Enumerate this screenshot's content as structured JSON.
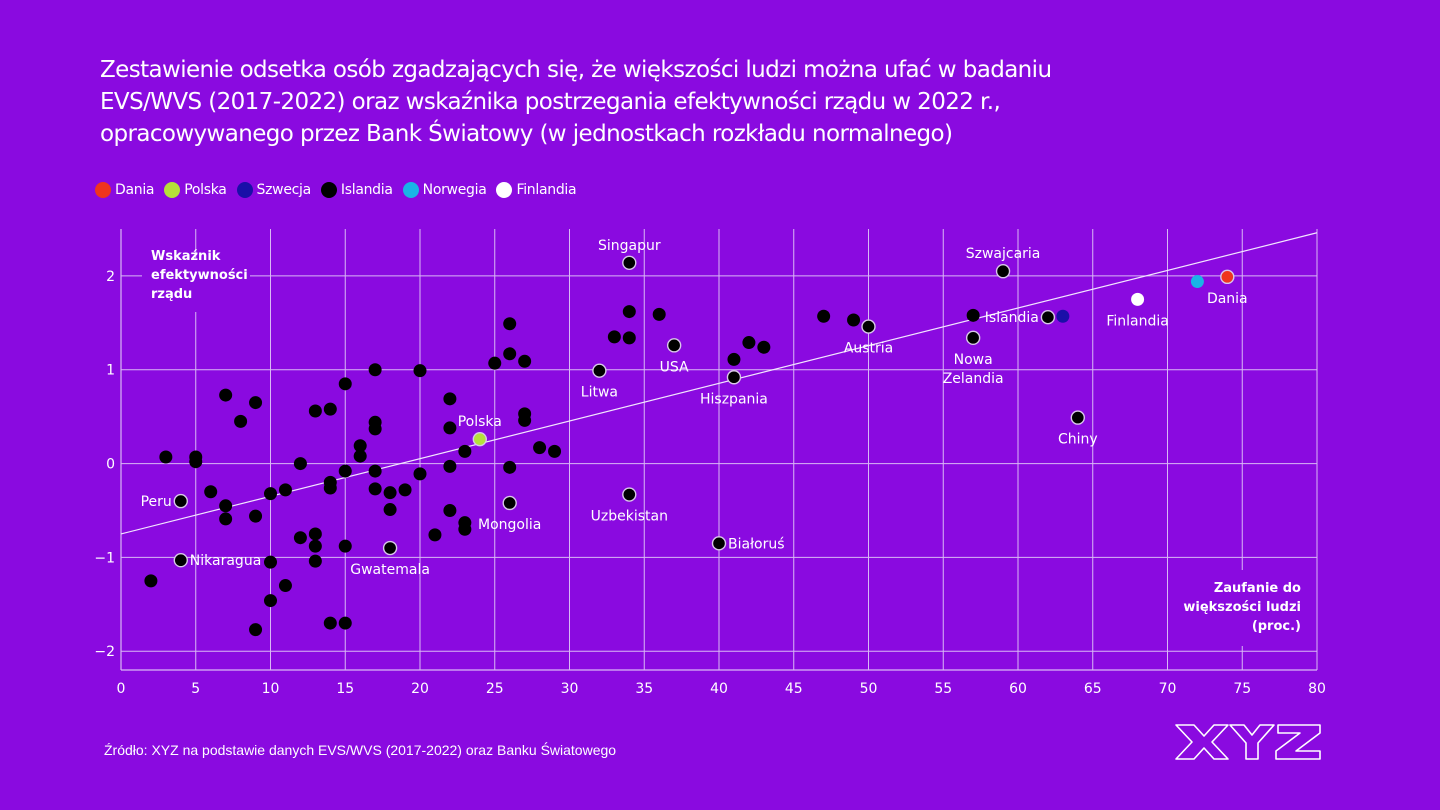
{
  "title_lines": [
    "Zestawienie odsetka osób zgadzających się, że większości ludzi można ufać w badaniu",
    "EVS/WVS (2017-2022) oraz wskaźnika postrzegania efektywności rządu w 2022 r.,",
    "opracowywanego przez Bank Światowy (w jednostkach rozkładu normalnego)"
  ],
  "legend": [
    {
      "label": "Dania",
      "color": "#f0341f"
    },
    {
      "label": "Polska",
      "color": "#b5e03a"
    },
    {
      "label": "Szwecja",
      "color": "#1a0fa8"
    },
    {
      "label": "Islandia",
      "color": "#000000"
    },
    {
      "label": "Norwegia",
      "color": "#1ab4e6"
    },
    {
      "label": "Finlandia",
      "color": "#ffffff"
    }
  ],
  "source": "Źródło: XYZ na podstawie danych EVS/WVS (2017-2022) oraz Banku Światowego",
  "logo_text": "XYZ",
  "colors": {
    "background": "#8a0ae0",
    "grid": "#d9b8f5",
    "default_point": "#000000"
  },
  "chart_data": {
    "type": "scatter",
    "title": "Zestawienie odsetka osób zgadzających się, że większości ludzi można ufać w badaniu EVS/WVS (2017-2022) oraz wskaźnika postrzegania efektywności rządu w 2022 r., opracowywanego przez Bank Światowy (w jednostkach rozkładu normalnego)",
    "xlabel_lines": [
      "Zaufanie do",
      "większości ludzi",
      "(proc.)"
    ],
    "ylabel_lines": [
      "Wskaźnik",
      "efektywności",
      "rządu"
    ],
    "xlim": [
      0,
      80
    ],
    "ylim": [
      -2.2,
      2.5
    ],
    "xticks": [
      0,
      5,
      10,
      15,
      20,
      25,
      30,
      35,
      40,
      45,
      50,
      55,
      60,
      65,
      70,
      75,
      80
    ],
    "yticks": [
      -2,
      -1,
      0,
      1,
      2
    ],
    "ytick_labels": [
      "−2",
      "−1",
      "0",
      "1",
      "2"
    ],
    "grid": true,
    "legend_position": "top-left",
    "trendline": {
      "x": [
        0,
        80
      ],
      "y": [
        -0.75,
        2.46
      ]
    },
    "points": [
      {
        "x": 2,
        "y": -1.25
      },
      {
        "x": 3,
        "y": 0.07
      },
      {
        "x": 4,
        "y": -0.4,
        "label": "Peru",
        "label_pos": "left",
        "outlined": true
      },
      {
        "x": 4,
        "y": -1.03,
        "label": "Nikaragua",
        "label_pos": "right",
        "outlined": true
      },
      {
        "x": 5,
        "y": 0.07
      },
      {
        "x": 5,
        "y": 0.02
      },
      {
        "x": 6,
        "y": -0.3
      },
      {
        "x": 7,
        "y": 0.73
      },
      {
        "x": 7,
        "y": -0.45
      },
      {
        "x": 7,
        "y": -0.59
      },
      {
        "x": 8,
        "y": 0.45
      },
      {
        "x": 9,
        "y": 0.65
      },
      {
        "x": 9,
        "y": -0.56
      },
      {
        "x": 9,
        "y": -1.77
      },
      {
        "x": 10,
        "y": -0.32
      },
      {
        "x": 10,
        "y": -1.05
      },
      {
        "x": 10,
        "y": -1.46
      },
      {
        "x": 11,
        "y": -0.28
      },
      {
        "x": 11,
        "y": -1.3
      },
      {
        "x": 12,
        "y": 0.0
      },
      {
        "x": 12,
        "y": -0.79
      },
      {
        "x": 13,
        "y": 0.56
      },
      {
        "x": 13,
        "y": -0.75
      },
      {
        "x": 13,
        "y": -0.88
      },
      {
        "x": 13,
        "y": -1.04
      },
      {
        "x": 14,
        "y": 0.58
      },
      {
        "x": 14,
        "y": -0.2
      },
      {
        "x": 14,
        "y": -0.26
      },
      {
        "x": 14,
        "y": -1.7
      },
      {
        "x": 15,
        "y": 0.85
      },
      {
        "x": 15,
        "y": -0.08
      },
      {
        "x": 15,
        "y": -0.88
      },
      {
        "x": 15,
        "y": -1.7
      },
      {
        "x": 16,
        "y": 0.19
      },
      {
        "x": 16,
        "y": 0.08
      },
      {
        "x": 17,
        "y": 1.0
      },
      {
        "x": 17,
        "y": 0.44
      },
      {
        "x": 17,
        "y": 0.37
      },
      {
        "x": 17,
        "y": -0.08
      },
      {
        "x": 17,
        "y": -0.27
      },
      {
        "x": 18,
        "y": -0.31
      },
      {
        "x": 18,
        "y": -0.49
      },
      {
        "x": 18,
        "y": -0.9,
        "label": "Gwatemala",
        "label_pos": "below",
        "outlined": true
      },
      {
        "x": 19,
        "y": -0.28
      },
      {
        "x": 20,
        "y": 0.99
      },
      {
        "x": 20,
        "y": -0.11
      },
      {
        "x": 21,
        "y": -0.76
      },
      {
        "x": 22,
        "y": 0.69
      },
      {
        "x": 22,
        "y": 0.38
      },
      {
        "x": 22,
        "y": -0.03
      },
      {
        "x": 22,
        "y": -0.5
      },
      {
        "x": 23,
        "y": 0.13
      },
      {
        "x": 23,
        "y": -0.63
      },
      {
        "x": 23,
        "y": -0.7
      },
      {
        "x": 24,
        "y": 0.26,
        "label": "Polska",
        "label_pos": "above",
        "color": "#b5e03a",
        "outlined": true
      },
      {
        "x": 25,
        "y": 1.07
      },
      {
        "x": 26,
        "y": 1.49
      },
      {
        "x": 26,
        "y": 1.17
      },
      {
        "x": 26,
        "y": -0.04
      },
      {
        "x": 26,
        "y": -0.42,
        "label": "Mongolia",
        "label_pos": "below",
        "outlined": true
      },
      {
        "x": 27,
        "y": 1.09
      },
      {
        "x": 27,
        "y": 0.53
      },
      {
        "x": 27,
        "y": 0.46
      },
      {
        "x": 28,
        "y": 0.17
      },
      {
        "x": 29,
        "y": 0.13
      },
      {
        "x": 32,
        "y": 0.99,
        "label": "Litwa",
        "label_pos": "below",
        "outlined": true
      },
      {
        "x": 33,
        "y": 1.35
      },
      {
        "x": 34,
        "y": 2.14,
        "label": "Singapur",
        "label_pos": "above",
        "outlined": true
      },
      {
        "x": 34,
        "y": 1.62
      },
      {
        "x": 34,
        "y": 1.34
      },
      {
        "x": 34,
        "y": -0.33,
        "label": "Uzbekistan",
        "label_pos": "below",
        "outlined": true
      },
      {
        "x": 36,
        "y": 1.59
      },
      {
        "x": 37,
        "y": 1.26,
        "label": "USA",
        "label_pos": "below",
        "outlined": true
      },
      {
        "x": 40,
        "y": -0.85,
        "label": "Białoruś",
        "label_pos": "right",
        "outlined": true
      },
      {
        "x": 41,
        "y": 1.11
      },
      {
        "x": 41,
        "y": 0.92,
        "label": "Hiszpania",
        "label_pos": "below",
        "outlined": true
      },
      {
        "x": 42,
        "y": 1.29
      },
      {
        "x": 43,
        "y": 1.24
      },
      {
        "x": 47,
        "y": 1.57
      },
      {
        "x": 49,
        "y": 1.53
      },
      {
        "x": 50,
        "y": 1.46,
        "label": "Austria",
        "label_pos": "below",
        "outlined": true
      },
      {
        "x": 57,
        "y": 1.58
      },
      {
        "x": 57,
        "y": 1.34,
        "label": "Nowa\nZelandia",
        "label_pos": "below",
        "outlined": true
      },
      {
        "x": 59,
        "y": 2.05,
        "label": "Szwajcaria",
        "label_pos": "above",
        "outlined": true
      },
      {
        "x": 62,
        "y": 1.56,
        "label": "Islandia",
        "label_pos": "left",
        "outlined": true
      },
      {
        "x": 63,
        "y": 1.57,
        "color": "#1a0fa8"
      },
      {
        "x": 64,
        "y": 0.49,
        "label": "Chiny",
        "label_pos": "below",
        "outlined": true
      },
      {
        "x": 68,
        "y": 1.75,
        "label": "Finlandia",
        "label_pos": "below",
        "color": "#ffffff"
      },
      {
        "x": 72,
        "y": 1.94,
        "color": "#1ab4e6"
      },
      {
        "x": 74,
        "y": 1.99,
        "label": "Dania",
        "label_pos": "below",
        "color": "#f0341f",
        "outlined": true
      }
    ]
  }
}
